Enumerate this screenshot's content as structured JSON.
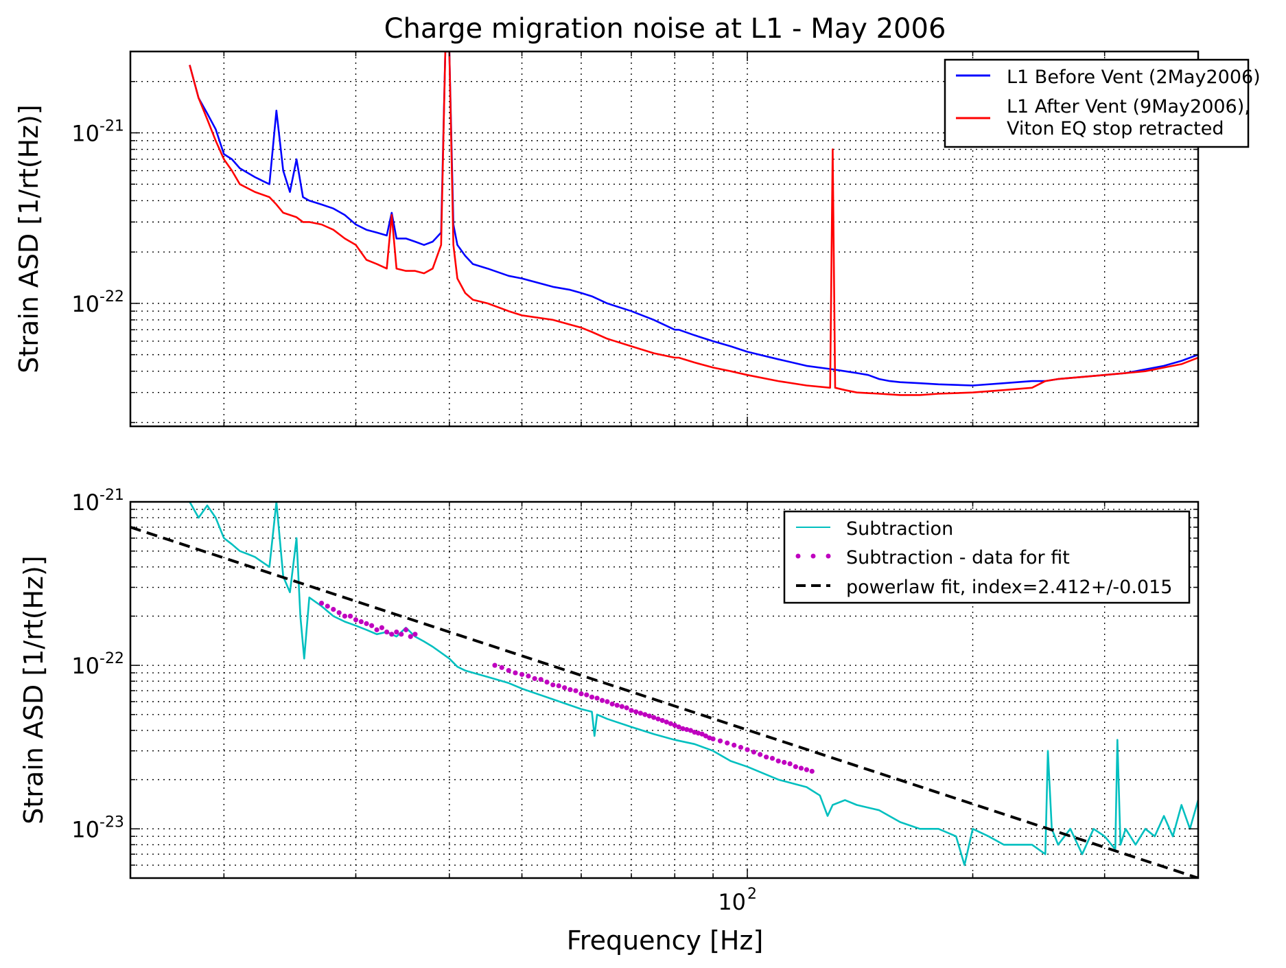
{
  "chart_data": [
    {
      "type": "line",
      "title": "Charge migration noise at L1 - May 2006",
      "xlabel": "",
      "ylabel": "Strain ASD [1/rt(Hz)]",
      "xscale": "log",
      "yscale": "log",
      "xlim": [
        15,
        400
      ],
      "ylim": [
        1.9e-23,
        3e-21
      ],
      "grid": true,
      "legend_position": "top-right",
      "y_ticks": [
        {
          "value": 1e-21,
          "base": "10",
          "exp": "-21"
        },
        {
          "value": 1e-22,
          "base": "10",
          "exp": "-22"
        }
      ],
      "series": [
        {
          "name": "L1 Before Vent (2May2006)",
          "color": "#0000ff",
          "x": [
            18,
            18.5,
            19,
            19.5,
            20,
            20.5,
            21,
            22,
            23,
            23.5,
            24,
            24.5,
            25,
            25.5,
            26,
            27,
            28,
            29,
            30,
            31,
            32,
            33,
            33.5,
            34,
            35,
            36,
            37,
            38,
            39,
            39.5,
            40,
            40.5,
            41,
            42,
            43,
            45,
            48,
            50,
            55,
            58,
            60,
            62,
            65,
            70,
            75,
            80,
            81,
            85,
            90,
            95,
            100,
            110,
            120,
            130,
            135,
            140,
            145,
            150,
            155,
            160,
            170,
            180,
            200,
            220,
            240,
            250,
            260,
            280,
            300,
            320,
            340,
            360,
            380,
            400
          ],
          "values": [
            2.5e-21,
            1.6e-21,
            1.3e-21,
            1.05e-21,
            7.5e-22,
            7e-22,
            6.2e-22,
            5.5e-22,
            5e-22,
            1.35e-21,
            6e-22,
            4.5e-22,
            7e-22,
            4.2e-22,
            4e-22,
            3.8e-22,
            3.6e-22,
            3.3e-22,
            2.9e-22,
            2.7e-22,
            2.6e-22,
            2.5e-22,
            3.4e-22,
            2.4e-22,
            2.4e-22,
            2.3e-22,
            2.2e-22,
            2.3e-22,
            2.6e-22,
            3e-21,
            3e-21,
            2.9e-22,
            2.2e-22,
            1.9e-22,
            1.7e-22,
            1.6e-22,
            1.45e-22,
            1.4e-22,
            1.25e-22,
            1.2e-22,
            1.15e-22,
            1.1e-22,
            1e-22,
            9e-23,
            8e-23,
            7e-23,
            7e-23,
            6.5e-23,
            6e-23,
            5.6e-23,
            5.2e-23,
            4.7e-23,
            4.3e-23,
            4.1e-23,
            4e-23,
            3.9e-23,
            3.8e-23,
            3.6e-23,
            3.5e-23,
            3.45e-23,
            3.4e-23,
            3.35e-23,
            3.3e-23,
            3.4e-23,
            3.5e-23,
            3.5e-23,
            3.6e-23,
            3.7e-23,
            3.8e-23,
            3.9e-23,
            4.1e-23,
            4.3e-23,
            4.6e-23,
            5e-23
          ]
        },
        {
          "name": "L1 After Vent (9May2006), Viton EQ stop retracted",
          "color": "#ff0000",
          "x": [
            18,
            18.5,
            19,
            19.5,
            20,
            20.5,
            21,
            22,
            23,
            23.5,
            24,
            25,
            25.5,
            26,
            27,
            28,
            29,
            30,
            31,
            32,
            33,
            33.5,
            34,
            35,
            36,
            37,
            38,
            39,
            39.5,
            40,
            40.5,
            41,
            42,
            43,
            45,
            48,
            50,
            55,
            58,
            60,
            62,
            65,
            70,
            75,
            80,
            81,
            85,
            90,
            95,
            100,
            110,
            120,
            129,
            130,
            131,
            135,
            140,
            150,
            160,
            170,
            180,
            200,
            220,
            240,
            250,
            260,
            280,
            300,
            320,
            340,
            360,
            380,
            400
          ],
          "values": [
            2.5e-21,
            1.6e-21,
            1.2e-21,
            9e-22,
            7e-22,
            6e-22,
            5e-22,
            4.5e-22,
            4.2e-22,
            3.8e-22,
            3.4e-22,
            3.2e-22,
            3e-22,
            3e-22,
            2.9e-22,
            2.7e-22,
            2.4e-22,
            2.2e-22,
            1.8e-22,
            1.7e-22,
            1.6e-22,
            3.3e-22,
            1.6e-22,
            1.55e-22,
            1.55e-22,
            1.5e-22,
            1.6e-22,
            2.2e-22,
            3e-21,
            3e-21,
            2.2e-22,
            1.4e-22,
            1.15e-22,
            1.05e-22,
            1e-22,
            9e-23,
            8.5e-23,
            8e-23,
            7.5e-23,
            7.2e-23,
            6.8e-23,
            6.2e-23,
            5.6e-23,
            5.1e-23,
            4.8e-23,
            4.8e-23,
            4.5e-23,
            4.2e-23,
            4e-23,
            3.8e-23,
            3.5e-23,
            3.3e-23,
            3.2e-23,
            8e-22,
            3.2e-23,
            3.1e-23,
            3e-23,
            2.95e-23,
            2.9e-23,
            2.9e-23,
            2.95e-23,
            3e-23,
            3.1e-23,
            3.2e-23,
            3.5e-23,
            3.6e-23,
            3.7e-23,
            3.8e-23,
            3.9e-23,
            4e-23,
            4.2e-23,
            4.4e-23,
            4.8e-23
          ]
        }
      ]
    },
    {
      "type": "line",
      "title": "",
      "xlabel": "Frequency [Hz]",
      "ylabel": "Strain ASD [1/rt(Hz)]",
      "xscale": "log",
      "yscale": "log",
      "xlim": [
        15,
        400
      ],
      "ylim": [
        5e-24,
        1e-21
      ],
      "grid": true,
      "legend_position": "top-right",
      "x_ticks": [
        {
          "value": 100,
          "base": "10",
          "exp": "2"
        }
      ],
      "y_ticks": [
        {
          "value": 1e-21,
          "base": "10",
          "exp": "-21"
        },
        {
          "value": 1e-22,
          "base": "10",
          "exp": "-22"
        },
        {
          "value": 1e-23,
          "base": "10",
          "exp": "-23"
        }
      ],
      "series": [
        {
          "name": "Subtraction",
          "color": "#00bfbf",
          "kind": "line",
          "x": [
            18,
            18.5,
            19,
            19.5,
            20,
            20.5,
            21,
            21.5,
            22,
            23,
            23.5,
            24,
            24.5,
            25,
            25.3,
            25.6,
            26,
            27,
            28,
            29,
            30,
            31,
            32,
            33,
            34,
            35,
            36,
            37,
            38,
            40,
            41,
            42,
            45,
            48,
            50,
            55,
            60,
            62,
            62.5,
            63,
            65,
            70,
            75,
            80,
            85,
            90,
            95,
            100,
            110,
            120,
            125,
            128,
            130,
            135,
            140,
            150,
            160,
            170,
            180,
            190,
            195,
            200,
            210,
            220,
            230,
            240,
            250,
            252,
            255,
            260,
            270,
            280,
            290,
            300,
            310,
            312,
            315,
            320,
            330,
            340,
            350,
            360,
            370,
            380,
            390,
            400
          ],
          "values": [
            1e-21,
            8e-22,
            9.5e-22,
            8e-22,
            6e-22,
            5.5e-22,
            5e-22,
            4.8e-22,
            4.6e-22,
            4e-22,
            1e-21,
            3.5e-22,
            2.8e-22,
            6e-22,
            2e-22,
            1.1e-22,
            2.6e-22,
            2.3e-22,
            2e-22,
            1.85e-22,
            1.75e-22,
            1.65e-22,
            1.55e-22,
            1.6e-22,
            1.5e-22,
            1.7e-22,
            1.5e-22,
            1.4e-22,
            1.3e-22,
            1.1e-22,
            9.8e-23,
            9.3e-23,
            8.5e-23,
            7.8e-23,
            7.2e-23,
            6.2e-23,
            5.4e-23,
            5.2e-23,
            3.7e-23,
            5e-23,
            4.7e-23,
            4.2e-23,
            3.8e-23,
            3.5e-23,
            3.3e-23,
            3e-23,
            2.6e-23,
            2.4e-23,
            2e-23,
            1.8e-23,
            1.6e-23,
            1.2e-23,
            1.4e-23,
            1.5e-23,
            1.4e-23,
            1.3e-23,
            1.1e-23,
            1e-23,
            1e-23,
            9e-24,
            6e-24,
            1e-23,
            9e-24,
            8e-24,
            8e-24,
            8e-24,
            7e-24,
            3e-23,
            1e-23,
            8e-24,
            1e-23,
            7e-24,
            1e-23,
            9e-24,
            7.5e-24,
            3.5e-23,
            8e-24,
            1e-23,
            8e-24,
            1e-23,
            9e-24,
            1.2e-23,
            9e-24,
            1.4e-23,
            1e-23,
            1.5e-23
          ]
        },
        {
          "name": "Subtraction - data for fit",
          "color": "#bf00bf",
          "kind": "points",
          "x": [
            27,
            27.5,
            28,
            28.5,
            29,
            29.5,
            30,
            30.5,
            31,
            31.5,
            32,
            32.5,
            33,
            33.5,
            34,
            34.5,
            35,
            35.5,
            36,
            46,
            47,
            48,
            49,
            50,
            51,
            52,
            53,
            54,
            55,
            56,
            57,
            58,
            59,
            60,
            61,
            62,
            63,
            64,
            65,
            66,
            67,
            68,
            69,
            70,
            71,
            72,
            73,
            74,
            75,
            76,
            77,
            78,
            79,
            80,
            81,
            82,
            83,
            84,
            85,
            86,
            87,
            88,
            89,
            90,
            92,
            94,
            96,
            98,
            100,
            102,
            104,
            106,
            108,
            110,
            112,
            114,
            116,
            118,
            120,
            122
          ],
          "values": [
            2.4e-22,
            2.3e-22,
            2.2e-22,
            2.1e-22,
            2e-22,
            2e-22,
            1.9e-22,
            1.85e-22,
            1.8e-22,
            1.75e-22,
            1.65e-22,
            1.7e-22,
            1.6e-22,
            1.55e-22,
            1.6e-22,
            1.55e-22,
            1.65e-22,
            1.5e-22,
            1.55e-22,
            1e-22,
            9.7e-23,
            9.3e-23,
            9e-23,
            8.8e-23,
            8.6e-23,
            8.3e-23,
            8.2e-23,
            7.9e-23,
            7.6e-23,
            7.5e-23,
            7.3e-23,
            7.1e-23,
            7e-23,
            6.7e-23,
            6.6e-23,
            6.4e-23,
            6.3e-23,
            6.1e-23,
            6e-23,
            5.8e-23,
            5.7e-23,
            5.6e-23,
            5.5e-23,
            5.3e-23,
            5.2e-23,
            5.1e-23,
            5e-23,
            4.9e-23,
            4.8e-23,
            4.7e-23,
            4.6e-23,
            4.5e-23,
            4.4e-23,
            4.3e-23,
            4.2e-23,
            4.1e-23,
            4.05e-23,
            4e-23,
            3.9e-23,
            3.85e-23,
            3.8e-23,
            3.7e-23,
            3.6e-23,
            3.55e-23,
            3.45e-23,
            3.35e-23,
            3.25e-23,
            3.15e-23,
            3.05e-23,
            2.95e-23,
            2.85e-23,
            2.75e-23,
            2.7e-23,
            2.6e-23,
            2.55e-23,
            2.5e-23,
            2.4e-23,
            2.35e-23,
            2.3e-23,
            2.25e-23
          ]
        },
        {
          "name": "powerlaw fit, index=2.412+/-0.015",
          "color": "#000000",
          "kind": "dashed",
          "x": [
            15,
            400
          ],
          "values": [
            7e-22,
            5e-24
          ]
        }
      ]
    }
  ]
}
